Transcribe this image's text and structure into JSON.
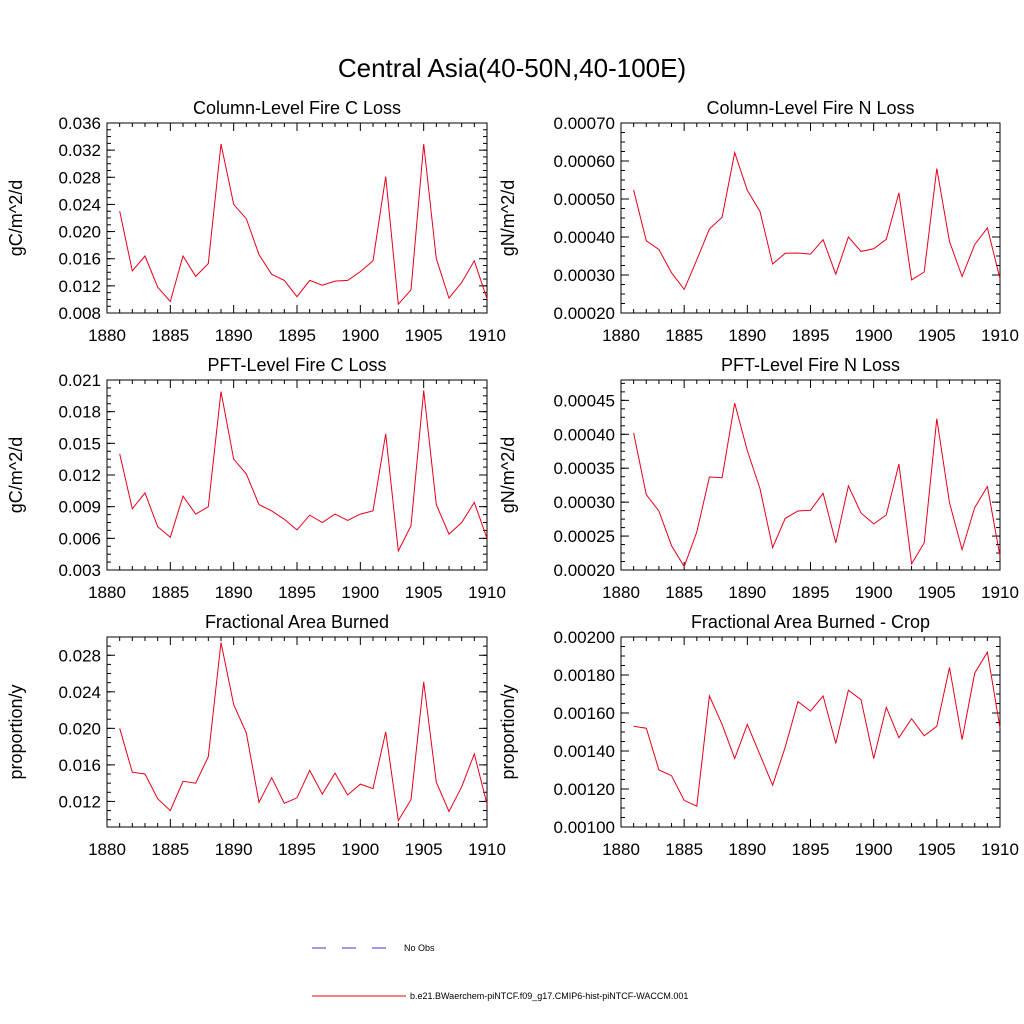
{
  "figure": {
    "title": "Central Asia(40-50N,40-100E)"
  },
  "colors": {
    "model_line": "#e8001a",
    "obs_line": "#3a3ac8",
    "axis": "#000000"
  },
  "legend": {
    "entries": [
      {
        "label": "No Obs",
        "style": "dashed",
        "color": "#3a3ac8"
      },
      {
        "label": "b.e21.BWaerchem-piNTCF.f09_g17.CMIP6-hist-piNTCF-WACCM.001",
        "style": "solid",
        "color": "#e8001a"
      }
    ]
  },
  "chart_data": [
    {
      "type": "line",
      "title": "Column-Level Fire C Loss",
      "ylabel": "gC/m^2/d",
      "xlim": [
        1880,
        1910
      ],
      "ylim": [
        0.008,
        0.036
      ],
      "xticks": [
        "1880",
        "1885",
        "1890",
        "1895",
        "1900",
        "1905",
        "1910"
      ],
      "yticks": [
        "0.008",
        "0.012",
        "0.016",
        "0.020",
        "0.024",
        "0.028",
        "0.032",
        "0.036"
      ],
      "series": [
        {
          "name": "b.e21.BWaerchem-piNTCF.f09_g17.CMIP6-hist-piNTCF-WACCM.001",
          "x": [
            1881,
            1882,
            1883,
            1884,
            1885,
            1886,
            1887,
            1888,
            1889,
            1890,
            1891,
            1892,
            1893,
            1894,
            1895,
            1896,
            1897,
            1898,
            1899,
            1900,
            1901,
            1902,
            1903,
            1904,
            1905,
            1906,
            1907,
            1908,
            1909,
            1910
          ],
          "y": [
            0.023,
            0.0142,
            0.0164,
            0.0118,
            0.0097,
            0.0164,
            0.0134,
            0.0153,
            0.0329,
            0.024,
            0.0219,
            0.0166,
            0.0137,
            0.0128,
            0.0104,
            0.0128,
            0.0121,
            0.0127,
            0.0128,
            0.0141,
            0.0157,
            0.0281,
            0.0093,
            0.0114,
            0.0329,
            0.016,
            0.0102,
            0.0125,
            0.0157,
            0.0101
          ]
        }
      ]
    },
    {
      "type": "line",
      "title": "Column-Level Fire N Loss",
      "ylabel": "gN/m^2/d",
      "xlim": [
        1880,
        1910
      ],
      "ylim": [
        0.0002,
        0.0007
      ],
      "xticks": [
        "1880",
        "1885",
        "1890",
        "1895",
        "1900",
        "1905",
        "1910"
      ],
      "yticks": [
        "0.00020",
        "0.00030",
        "0.00040",
        "0.00050",
        "0.00060",
        "0.00070"
      ],
      "series": [
        {
          "name": "b.e21.BWaerchem-piNTCF.f09_g17.CMIP6-hist-piNTCF-WACCM.001",
          "x": [
            1881,
            1882,
            1883,
            1884,
            1885,
            1886,
            1887,
            1888,
            1889,
            1890,
            1891,
            1892,
            1893,
            1894,
            1895,
            1896,
            1897,
            1898,
            1899,
            1900,
            1901,
            1902,
            1903,
            1904,
            1905,
            1906,
            1907,
            1908,
            1909,
            1910
          ],
          "y": [
            0.000524,
            0.00039,
            0.000367,
            0.000306,
            0.000262,
            0.00034,
            0.000421,
            0.000452,
            0.000622,
            0.000523,
            0.000467,
            0.000329,
            0.000357,
            0.000358,
            0.000355,
            0.000393,
            0.000302,
            0.0004,
            0.000362,
            0.000369,
            0.000394,
            0.000516,
            0.000287,
            0.000308,
            0.00058,
            0.000388,
            0.000296,
            0.00038,
            0.000424,
            0.00029
          ]
        }
      ]
    },
    {
      "type": "line",
      "title": "PFT-Level Fire C Loss",
      "ylabel": "gC/m^2/d",
      "xlim": [
        1880,
        1910
      ],
      "ylim": [
        0.003,
        0.021
      ],
      "xticks": [
        "1880",
        "1885",
        "1890",
        "1895",
        "1900",
        "1905",
        "1910"
      ],
      "yticks": [
        "0.003",
        "0.006",
        "0.009",
        "0.012",
        "0.015",
        "0.018",
        "0.021"
      ],
      "series": [
        {
          "name": "b.e21.BWaerchem-piNTCF.f09_g17.CMIP6-hist-piNTCF-WACCM.001",
          "x": [
            1881,
            1882,
            1883,
            1884,
            1885,
            1886,
            1887,
            1888,
            1889,
            1890,
            1891,
            1892,
            1893,
            1894,
            1895,
            1896,
            1897,
            1898,
            1899,
            1900,
            1901,
            1902,
            1903,
            1904,
            1905,
            1906,
            1907,
            1908,
            1909,
            1910
          ],
          "y": [
            0.014,
            0.0088,
            0.0103,
            0.0071,
            0.0061,
            0.01,
            0.0083,
            0.009,
            0.0199,
            0.0135,
            0.0121,
            0.0092,
            0.0086,
            0.0078,
            0.0068,
            0.0082,
            0.0075,
            0.0083,
            0.0077,
            0.0083,
            0.0086,
            0.0159,
            0.0048,
            0.0072,
            0.02,
            0.0092,
            0.0064,
            0.0075,
            0.0094,
            0.006
          ]
        }
      ]
    },
    {
      "type": "line",
      "title": "PFT-Level Fire N Loss",
      "ylabel": "gN/m^2/d",
      "xlim": [
        1880,
        1910
      ],
      "ylim": [
        0.0002,
        0.00048
      ],
      "xticks": [
        "1880",
        "1885",
        "1890",
        "1895",
        "1900",
        "1905",
        "1910"
      ],
      "yticks": [
        "0.00020",
        "0.00025",
        "0.00030",
        "0.00035",
        "0.00040",
        "0.00045"
      ],
      "series": [
        {
          "name": "b.e21.BWaerchem-piNTCF.f09_g17.CMIP6-hist-piNTCF-WACCM.001",
          "x": [
            1881,
            1882,
            1883,
            1884,
            1885,
            1886,
            1887,
            1888,
            1889,
            1890,
            1891,
            1892,
            1893,
            1894,
            1895,
            1896,
            1897,
            1898,
            1899,
            1900,
            1901,
            1902,
            1903,
            1904,
            1905,
            1906,
            1907,
            1908,
            1909,
            1910
          ],
          "y": [
            0.000402,
            0.000311,
            0.000287,
            0.000236,
            0.000205,
            0.000256,
            0.000337,
            0.000336,
            0.000446,
            0.000376,
            0.00032,
            0.000233,
            0.000276,
            0.000287,
            0.000288,
            0.000313,
            0.00024,
            0.000324,
            0.000284,
            0.000268,
            0.000281,
            0.000356,
            0.000209,
            0.00024,
            0.000423,
            0.000299,
            0.00023,
            0.000292,
            0.000323,
            0.00022
          ]
        }
      ]
    },
    {
      "type": "line",
      "title": "Fractional Area Burned",
      "ylabel": "proportion/y",
      "xlim": [
        1880,
        1910
      ],
      "ylim": [
        0.0092,
        0.03
      ],
      "xticks": [
        "1880",
        "1885",
        "1890",
        "1895",
        "1900",
        "1905",
        "1910"
      ],
      "yticks": [
        "0.012",
        "0.016",
        "0.020",
        "0.024",
        "0.028"
      ],
      "series": [
        {
          "name": "b.e21.BWaerchem-piNTCF.f09_g17.CMIP6-hist-piNTCF-WACCM.001",
          "x": [
            1881,
            1882,
            1883,
            1884,
            1885,
            1886,
            1887,
            1888,
            1889,
            1890,
            1891,
            1892,
            1893,
            1894,
            1895,
            1896,
            1897,
            1898,
            1899,
            1900,
            1901,
            1902,
            1903,
            1904,
            1905,
            1906,
            1907,
            1908,
            1909,
            1910
          ],
          "y": [
            0.02,
            0.0152,
            0.015,
            0.0123,
            0.011,
            0.0142,
            0.014,
            0.0169,
            0.0294,
            0.0226,
            0.0195,
            0.0119,
            0.0146,
            0.0118,
            0.0124,
            0.0154,
            0.0128,
            0.0151,
            0.0127,
            0.0139,
            0.0134,
            0.0196,
            0.0099,
            0.0122,
            0.0251,
            0.0141,
            0.0109,
            0.0136,
            0.0172,
            0.0117
          ]
        }
      ]
    },
    {
      "type": "line",
      "title": "Fractional Area Burned - Crop",
      "ylabel": "proportion/y",
      "xlim": [
        1880,
        1910
      ],
      "ylim": [
        0.001,
        0.002
      ],
      "xticks": [
        "1880",
        "1885",
        "1890",
        "1895",
        "1900",
        "1905",
        "1910"
      ],
      "yticks": [
        "0.00100",
        "0.00120",
        "0.00140",
        "0.00160",
        "0.00180",
        "0.00200"
      ],
      "series": [
        {
          "name": "b.e21.BWaerchem-piNTCF.f09_g17.CMIP6-hist-piNTCF-WACCM.001",
          "x": [
            1881,
            1882,
            1883,
            1884,
            1885,
            1886,
            1887,
            1888,
            1889,
            1890,
            1891,
            1892,
            1893,
            1894,
            1895,
            1896,
            1897,
            1898,
            1899,
            1900,
            1901,
            1902,
            1903,
            1904,
            1905,
            1906,
            1907,
            1908,
            1909,
            1910
          ],
          "y": [
            0.00153,
            0.00152,
            0.0013,
            0.00127,
            0.00114,
            0.00111,
            0.00169,
            0.00154,
            0.00136,
            0.00154,
            0.00138,
            0.00122,
            0.00142,
            0.00166,
            0.00161,
            0.00169,
            0.00144,
            0.00172,
            0.00167,
            0.00136,
            0.00163,
            0.00147,
            0.00157,
            0.00148,
            0.00153,
            0.00184,
            0.00146,
            0.00181,
            0.00192,
            0.00152
          ]
        }
      ]
    }
  ]
}
